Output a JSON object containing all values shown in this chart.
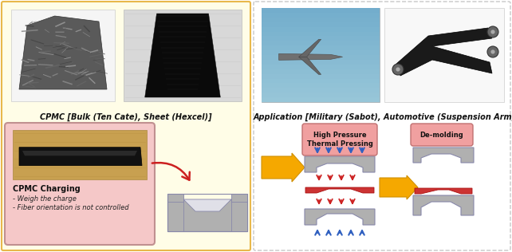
{
  "fig_width": 6.42,
  "fig_height": 3.16,
  "dpi": 100,
  "bg_color": "#ffffff",
  "left_panel_bg": "#fffde7",
  "left_border_color": "#e8b84b",
  "right_border_color": "#c8c8c8",
  "title_left": "CPMC [Bulk (Ten Cate), Sheet (Hexcel)]",
  "title_right": "Application [Military (Sabot), Automotive (Suspension Arm)]",
  "title_fontsize": 7.0,
  "cpmc_box_bg": "#f5c8c8",
  "cpmc_box_border": "#c09090",
  "cpmc_title": "CPMC Charging",
  "cpmc_bullet1": "- Weigh the charge",
  "cpmc_bullet2": "- Fiber orientation is not controlled",
  "label_hp": "High Pressure\nThermal Pressing",
  "label_dm": "De-molding",
  "label_fontsize": 6.0,
  "label_box_bg": "#f0a0a0",
  "label_box_edge": "#c07070",
  "arrow_yellow": "#f5a800",
  "arrow_blue": "#3060c0",
  "arrow_red": "#cc2020",
  "mold_gray": "#b0b0b0",
  "mold_edge": "#8888aa"
}
